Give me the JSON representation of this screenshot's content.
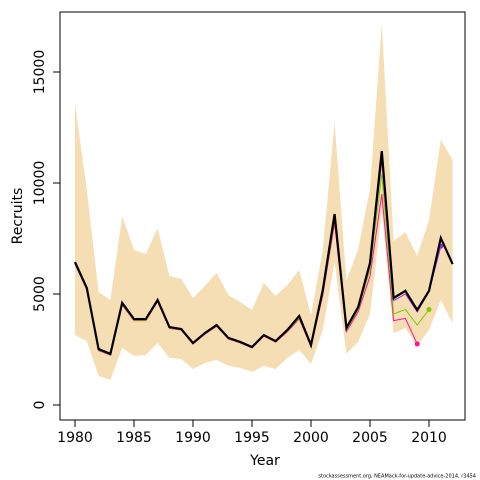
{
  "chart_data": {
    "type": "line",
    "xlabel": "Year",
    "ylabel": "Recruits",
    "footnote": "stockassessment.org, NEAMack-for-update-advice-2014, r3454",
    "x": [
      1980,
      1981,
      1982,
      1983,
      1984,
      1985,
      1986,
      1987,
      1988,
      1989,
      1990,
      1991,
      1992,
      1993,
      1994,
      1995,
      1996,
      1997,
      1998,
      1999,
      2000,
      2001,
      2002,
      2003,
      2004,
      2005,
      2006,
      2007,
      2008,
      2009,
      2010,
      2011,
      2012
    ],
    "xlim": [
      1978.73,
      2013.05
    ],
    "ylim": [
      -676,
      17703
    ],
    "xticks": [
      1980,
      1985,
      1990,
      1995,
      2000,
      2005,
      2010
    ],
    "yticks": [
      0,
      5000,
      10000,
      15000
    ],
    "band": {
      "color": "#f5deb3",
      "upper": [
        13600,
        9690,
        5090,
        4730,
        8510,
        6980,
        6800,
        7970,
        5810,
        5680,
        4820,
        5360,
        5950,
        4950,
        4640,
        4280,
        5500,
        4910,
        5410,
        6080,
        4050,
        6980,
        12750,
        5590,
        7030,
        9730,
        17160,
        7390,
        7790,
        6710,
        8330,
        11940,
        11040
      ],
      "lower": [
        3150,
        2880,
        1310,
        1130,
        2570,
        2210,
        2250,
        2790,
        2120,
        2070,
        1620,
        1890,
        2030,
        1760,
        1670,
        1490,
        1760,
        1620,
        2120,
        2480,
        1850,
        3380,
        6440,
        2300,
        2840,
        4100,
        8780,
        3240,
        3470,
        2660,
        3380,
        4730,
        3690
      ]
    },
    "series": [
      {
        "color": "#ff1493",
        "values": [
          6350,
          5200,
          2450,
          2250,
          4500,
          3800,
          3800,
          4650,
          3450,
          3380,
          2750,
          3180,
          3550,
          2970,
          2800,
          2570,
          3100,
          2830,
          3300,
          3880,
          2620,
          4950,
          8200,
          3300,
          4200,
          5800,
          9500,
          3800,
          3900,
          2750,
          null,
          null,
          null
        ]
      },
      {
        "color": "#7fc900",
        "values": [
          6380,
          5220,
          2470,
          2260,
          4520,
          3820,
          3820,
          4680,
          3470,
          3390,
          2760,
          3200,
          3570,
          2990,
          2810,
          2590,
          3120,
          2850,
          3330,
          3930,
          2650,
          5050,
          8400,
          3380,
          4300,
          6100,
          10400,
          4100,
          4300,
          3600,
          4300,
          null,
          null
        ]
      },
      {
        "color": "#a020f0",
        "values": [
          6420,
          5250,
          2500,
          2290,
          4580,
          3850,
          3850,
          4710,
          3490,
          3410,
          2780,
          3220,
          3590,
          3010,
          2830,
          2600,
          3140,
          2870,
          3360,
          3980,
          2680,
          5130,
          8550,
          3440,
          4380,
          6300,
          11000,
          4700,
          5000,
          4200,
          5100,
          7150,
          null
        ]
      },
      {
        "color": "#000000",
        "values": [
          6440,
          5270,
          2520,
          2300,
          4600,
          3870,
          3870,
          4730,
          3510,
          3420,
          2790,
          3240,
          3600,
          3020,
          2840,
          2610,
          3150,
          2880,
          3380,
          4010,
          2700,
          5180,
          8600,
          3470,
          4410,
          6400,
          11440,
          4820,
          5140,
          4280,
          5140,
          7520,
          6350
        ]
      }
    ]
  }
}
